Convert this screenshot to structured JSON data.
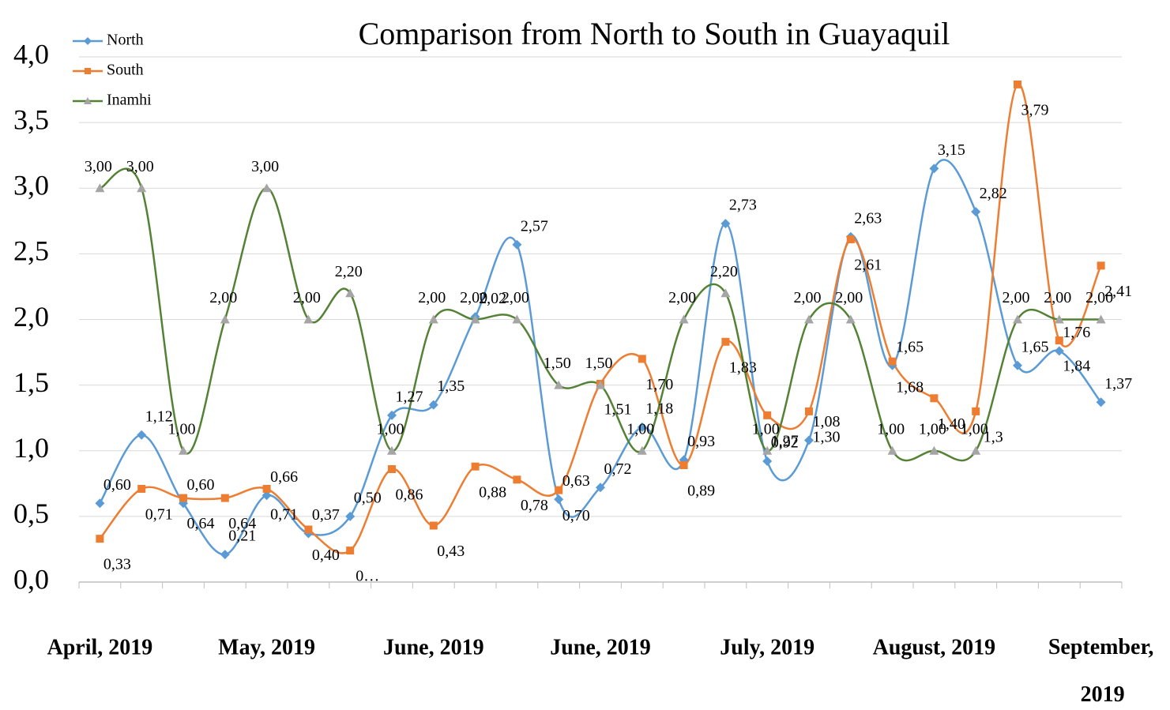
{
  "chart_data": {
    "type": "line",
    "title": "Comparison from North to South in Guayaquil",
    "categories": [
      "April, 2019",
      null,
      null,
      null,
      "May, 2019",
      null,
      null,
      null,
      "June, 2019",
      null,
      null,
      null,
      "June, 2019",
      null,
      null,
      null,
      "July, 2019",
      null,
      null,
      null,
      "August, 2019",
      null,
      null,
      null,
      "September, 2019"
    ],
    "ylim": [
      0,
      4
    ],
    "yticks": [
      {
        "value": 0,
        "label": "0,0"
      },
      {
        "value": 0.5,
        "label": "0,5"
      },
      {
        "value": 1,
        "label": "1,0"
      },
      {
        "value": 1.5,
        "label": "1,5"
      },
      {
        "value": 2,
        "label": "2,0"
      },
      {
        "value": 2.5,
        "label": "2,5"
      },
      {
        "value": 3,
        "label": "3,0"
      },
      {
        "value": 3.5,
        "label": "3,5"
      },
      {
        "value": 4,
        "label": "4,0"
      }
    ],
    "grid": true,
    "smooth": true,
    "legend": "top-left",
    "series": [
      {
        "name": "North",
        "color": "#5b9bd5",
        "marker": "diamond",
        "values": [
          0.6,
          1.12,
          0.6,
          0.21,
          0.66,
          0.37,
          0.5,
          1.27,
          1.35,
          2.02,
          2.57,
          0.63,
          0.72,
          1.18,
          0.93,
          2.73,
          0.92,
          1.08,
          2.63,
          1.65,
          3.15,
          2.82,
          1.65,
          1.76,
          1.37
        ],
        "value_labels": [
          "0,60",
          "1,12",
          "0,60",
          "0,21",
          "0,66",
          "0,37",
          "0,50",
          "1,27",
          "1,35",
          "2,02",
          "2,57",
          "0,63",
          "0,72",
          "1,18",
          "0,93",
          "2,73",
          "0,92",
          "1,08",
          "2,63",
          "1,65",
          "3,15",
          "2,82",
          "1,65",
          "1,76",
          "1,37"
        ]
      },
      {
        "name": "South",
        "color": "#ed7d31",
        "marker": "square",
        "values": [
          0.33,
          0.71,
          0.64,
          0.64,
          0.71,
          0.4,
          0.24,
          0.86,
          0.43,
          0.88,
          0.78,
          0.7,
          1.51,
          1.7,
          0.89,
          1.83,
          1.27,
          1.3,
          2.61,
          1.68,
          1.4,
          1.3,
          3.79,
          1.84,
          2.41
        ],
        "value_labels": [
          "0,33",
          "0,71",
          "0,64",
          "0,64",
          "0,71",
          "0,40",
          "0…",
          "0,86",
          "0,43",
          "0,88",
          "0,78",
          "0,70",
          "1,51",
          "1,70",
          "0,89",
          "1,83",
          "1,27",
          "1,30",
          "2,61",
          "1,68",
          "1,40",
          "1,3",
          "3,79",
          "1,84",
          "2,41"
        ]
      },
      {
        "name": "Inamhi",
        "color": "#548235",
        "marker_color": "#a5a5a5",
        "marker": "triangle",
        "values": [
          3.0,
          3.0,
          1.0,
          2.0,
          3.0,
          2.0,
          2.2,
          1.0,
          2.0,
          2.0,
          2.0,
          1.5,
          1.5,
          1.0,
          2.0,
          2.2,
          1.0,
          2.0,
          2.0,
          1.0,
          1.0,
          1.0,
          2.0,
          2.0,
          2.0
        ],
        "value_labels": [
          "3,00",
          "3,00",
          "1,00",
          "2,00",
          "3,00",
          "2,00",
          "2,20",
          "1,00",
          "2,00",
          "2,00",
          "2,00",
          "1,50",
          "1,50",
          "1,00",
          "2,00",
          "2,20",
          "1,00",
          "2,00",
          "2,00",
          "1,00",
          "1,00",
          "1,00",
          "2,00",
          "2,00",
          "2,00"
        ]
      }
    ]
  }
}
